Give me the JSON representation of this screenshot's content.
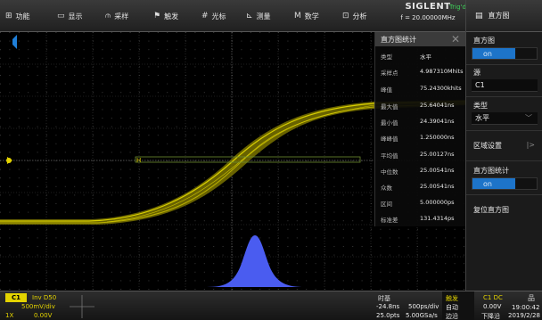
{
  "menu": [
    {
      "icon": "⊞",
      "icon_name": "function-icon",
      "label": "功能"
    },
    {
      "icon": "▭",
      "icon_name": "display-icon",
      "label": "显示"
    },
    {
      "icon": "⫙",
      "icon_name": "acquire-icon",
      "label": "采样"
    },
    {
      "icon": "⚑",
      "icon_name": "trigger-icon",
      "label": "触发"
    },
    {
      "icon": "#",
      "icon_name": "cursor-icon",
      "label": "光标"
    },
    {
      "icon": "⊾",
      "icon_name": "measure-icon",
      "label": "测量"
    },
    {
      "icon": "M",
      "icon_name": "math-icon",
      "label": "数学"
    },
    {
      "icon": "⊡",
      "icon_name": "analysis-icon",
      "label": "分析"
    }
  ],
  "brand": {
    "name": "SIGLENT",
    "trig_status": "Trig'd",
    "frequency": "f = 20.00000MHz"
  },
  "right_panel": {
    "header_icon": "histogram-menu-icon",
    "header": "直方图",
    "histogram_label": "直方图",
    "histogram_state": "on",
    "source_label": "源",
    "source_value": "C1",
    "type_label": "类型",
    "type_value": "水平",
    "region_label": "区域设置",
    "stats_label": "直方图统计",
    "stats_state": "on",
    "reset_label": "复位直方图"
  },
  "stats_panel": {
    "title": "直方图统计",
    "rows": [
      {
        "k": "类型",
        "v": "水平"
      },
      {
        "k": "采样点",
        "v": "4.987310Mhits"
      },
      {
        "k": "峰值",
        "v": "75.24300khits"
      },
      {
        "k": "最大值",
        "v": "25.64041ns"
      },
      {
        "k": "最小值",
        "v": "24.39041ns"
      },
      {
        "k": "峰峰值",
        "v": "1.250000ns"
      },
      {
        "k": "平均值",
        "v": "25.00127ns"
      },
      {
        "k": "中位数",
        "v": "25.00541ns"
      },
      {
        "k": "众数",
        "v": "25.00541ns"
      },
      {
        "k": "区间",
        "v": "5.000000ps"
      },
      {
        "k": "标准差",
        "v": "131.4314ps"
      }
    ]
  },
  "waveform": {
    "marker_h": "H",
    "trace_color": "#c9c000",
    "histogram_color": "#4a5cf0"
  },
  "bottom": {
    "channel": "C1",
    "ch_flags": "Inv  D50",
    "ch_scale": "500mV/div",
    "ch_probe": "1X",
    "ch_offset": "0.00V",
    "timebase_label": "时基",
    "tb_delay": "-24.8ns",
    "tb_scale": "500ps/div",
    "tb_depth": "25.0pts",
    "tb_rate": "5.00GSa/s",
    "trig_label": "触发",
    "trig_mode": "自动",
    "trig_type": "边沿",
    "trig_src": "C1 DC",
    "trig_level": "0.00V",
    "trig_slope": "下降沿",
    "time": "19:00:42",
    "date": "2019/2/28"
  }
}
